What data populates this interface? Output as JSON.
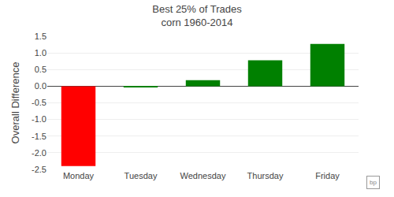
{
  "chart_data": {
    "type": "bar",
    "title": "Best 25% of Trades",
    "subtitle": "corn 1960-2014",
    "categories": [
      "Monday",
      "Tuesday",
      "Wednesday",
      "Thursday",
      "Friday"
    ],
    "values": [
      -2.4,
      -0.03,
      0.18,
      0.78,
      1.27
    ],
    "colors": [
      "#ff0000",
      "#008000",
      "#008000",
      "#008000",
      "#008000"
    ],
    "ylabel": "Overall Difference",
    "ylim": [
      -2.5,
      1.5
    ],
    "yticks": [
      -2.5,
      {
        "value": -2.0,
        "label": "-2.0"
      },
      -1.5,
      {
        "value": -1.0,
        "label": "-1.0"
      },
      -0.5,
      {
        "value": 0.0,
        "label": "0.0"
      },
      0.5,
      {
        "value": 1.0,
        "label": "1.0"
      },
      1.5
    ],
    "grid": true,
    "annotations": [
      "bp"
    ]
  }
}
